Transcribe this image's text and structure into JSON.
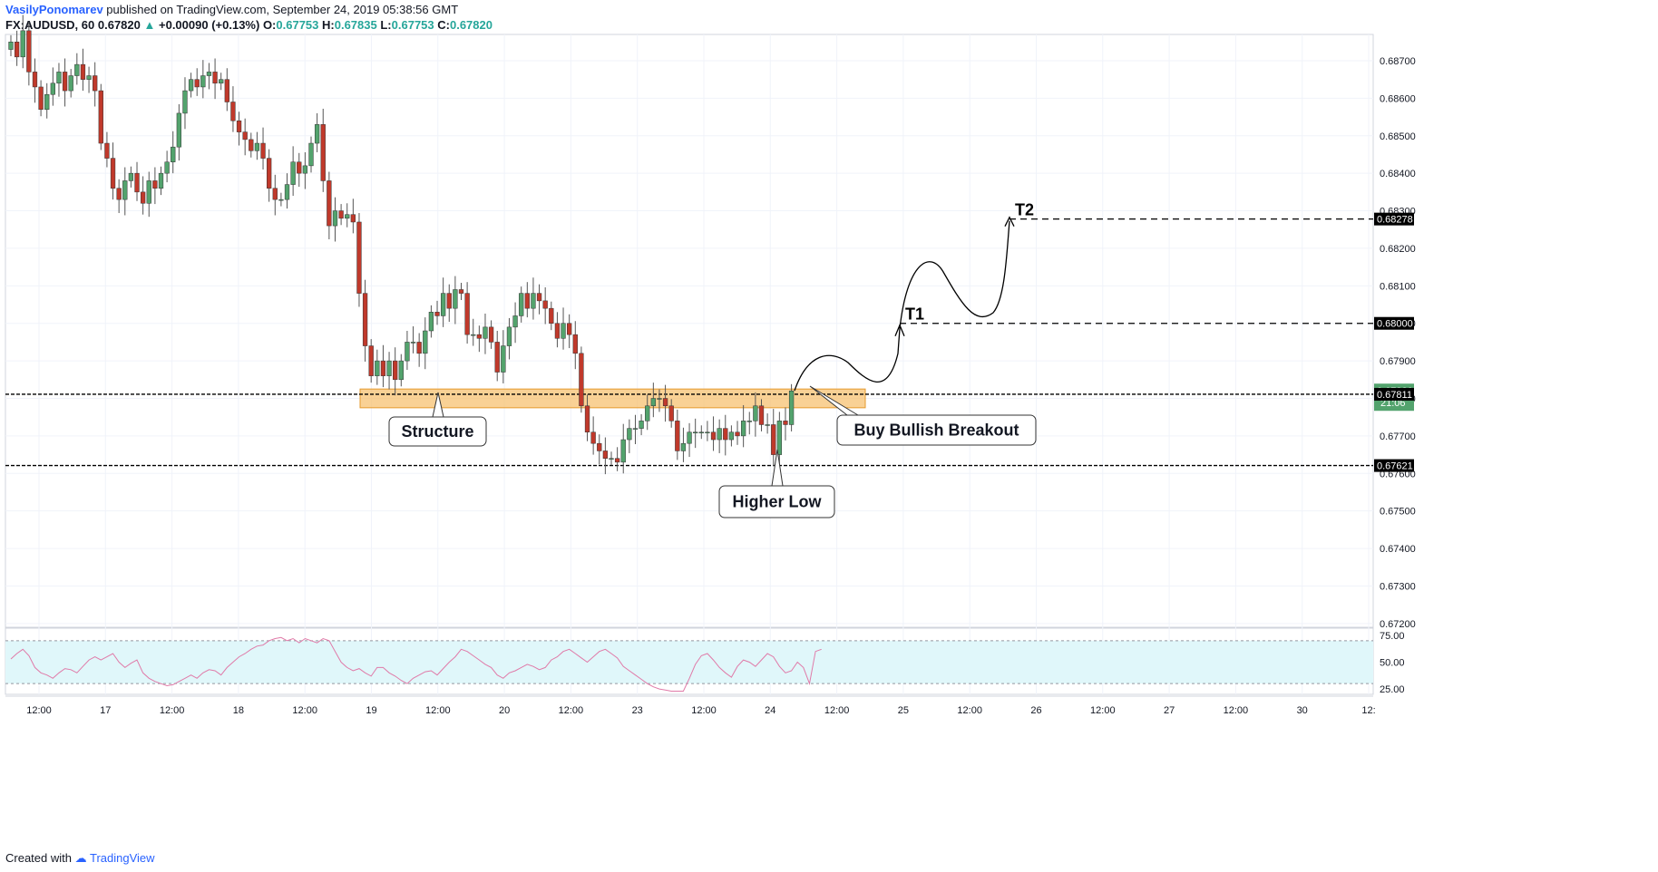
{
  "header": {
    "author": "VasilyPonomarev",
    "published_text": "published on TradingView.com, September 24, 2019 05:38:56 GMT",
    "symbol": "FX:AUDUSD, 60",
    "last": "0.67820",
    "arrow": "▲",
    "change": "+0.00090 (+0.13%)",
    "ohlc": {
      "o_label": "O:",
      "o": "0.67753",
      "h_label": "H:",
      "h": "0.67835",
      "l_label": "L:",
      "l": "0.67753",
      "c_label": "C:",
      "c": "0.67820"
    }
  },
  "footer": {
    "created_with": "Created with",
    "brand": "TradingView",
    "logo_icon": "tradingview-logo-icon"
  },
  "colors": {
    "bull": "#53a36d",
    "bear": "#c0392b",
    "zone_fill": "#f7c271",
    "zone_border": "#e59a2e",
    "rsi_band": "#e0f7fa",
    "rsi_line": "#e07aa8",
    "axis_text": "#131722",
    "grid": "#f0f3fa"
  },
  "chart_data": [
    {
      "type": "candlestick",
      "title": "FX:AUDUSD, 60",
      "ylim": [
        0.6719,
        0.6877
      ],
      "y_ticks": [
        "0.67200",
        "0.67300",
        "0.67400",
        "0.67500",
        "0.67600",
        "0.67700",
        "0.67800",
        "0.67900",
        "0.68000",
        "0.68100",
        "0.68200",
        "0.68300",
        "0.68400",
        "0.68500",
        "0.68600",
        "0.68700"
      ],
      "x_ticks": [
        "12:00",
        "17",
        "12:00",
        "18",
        "12:00",
        "19",
        "12:00",
        "20",
        "12:00",
        "23",
        "12:00",
        "24",
        "12:00",
        "25",
        "12:00",
        "26",
        "12:00",
        "27",
        "12:00",
        "30",
        "12:"
      ],
      "price_labels": [
        "0.68278",
        "0.68000",
        "0.67820",
        "21:06",
        "0.67811",
        "0.67621"
      ],
      "horizontal_levels": [
        0.67811,
        0.67621
      ],
      "zone": [
        0.67775,
        0.67825
      ],
      "targets": [
        {
          "label": "T1",
          "price": 0.68
        },
        {
          "label": "T2",
          "price": 0.68278
        }
      ],
      "annotations": [
        "Structure",
        "Buy Bullish Breakout",
        "Higher Low"
      ],
      "closes": [
        0.6875,
        0.6871,
        0.6878,
        0.6867,
        0.6863,
        0.6857,
        0.6861,
        0.6864,
        0.6867,
        0.6862,
        0.6866,
        0.6869,
        0.6865,
        0.6866,
        0.6862,
        0.6848,
        0.6844,
        0.6836,
        0.6833,
        0.6838,
        0.684,
        0.6835,
        0.6832,
        0.6838,
        0.6836,
        0.684,
        0.6843,
        0.6847,
        0.6856,
        0.6862,
        0.6865,
        0.6863,
        0.6866,
        0.6867,
        0.6864,
        0.6865,
        0.6859,
        0.6854,
        0.6851,
        0.6849,
        0.6846,
        0.6848,
        0.6844,
        0.6836,
        0.6833,
        0.6833,
        0.6837,
        0.6843,
        0.684,
        0.6842,
        0.6848,
        0.6853,
        0.6838,
        0.6826,
        0.683,
        0.6828,
        0.6829,
        0.6827,
        0.6808,
        0.6794,
        0.6786,
        0.679,
        0.6786,
        0.679,
        0.6785,
        0.679,
        0.6795,
        0.6795,
        0.6792,
        0.6798,
        0.6803,
        0.6802,
        0.6808,
        0.6804,
        0.6809,
        0.6808,
        0.6797,
        0.6797,
        0.6796,
        0.6799,
        0.6795,
        0.6787,
        0.6794,
        0.6799,
        0.6802,
        0.6808,
        0.6804,
        0.6808,
        0.6806,
        0.6804,
        0.68,
        0.6796,
        0.68,
        0.6797,
        0.6792,
        0.6778,
        0.6771,
        0.6768,
        0.6766,
        0.6764,
        0.6764,
        0.6763,
        0.6769,
        0.6772,
        0.6772,
        0.6774,
        0.6778,
        0.678,
        0.678,
        0.6778,
        0.6774,
        0.6766,
        0.6768,
        0.6771,
        0.6771,
        0.6771,
        0.6771,
        0.6769,
        0.6772,
        0.6769,
        0.6771,
        0.677,
        0.6774,
        0.6774,
        0.6778,
        0.6773,
        0.6773,
        0.6765,
        0.6774,
        0.6773,
        0.6782
      ]
    },
    {
      "type": "line",
      "title": "",
      "ylim": [
        20,
        80
      ],
      "y_ticks": [
        "75.00",
        "50.00",
        "25.00"
      ],
      "band": [
        30,
        70
      ],
      "values": [
        53,
        58,
        62,
        56,
        45,
        40,
        38,
        35,
        40,
        44,
        43,
        40,
        46,
        52,
        55,
        52,
        55,
        58,
        50,
        45,
        49,
        52,
        40,
        35,
        32,
        30,
        28,
        29,
        32,
        35,
        38,
        35,
        40,
        43,
        42,
        38,
        45,
        50,
        55,
        58,
        62,
        65,
        66,
        70,
        72,
        73,
        70,
        72,
        68,
        72,
        70,
        68,
        72,
        70,
        60,
        50,
        45,
        42,
        44,
        40,
        37,
        45,
        45,
        40,
        37,
        33,
        30,
        35,
        38,
        41,
        42,
        38,
        44,
        50,
        55,
        62,
        60,
        56,
        52,
        48,
        45,
        38,
        35,
        40,
        42,
        45,
        48,
        46,
        43,
        45,
        52,
        55,
        60,
        62,
        58,
        54,
        50,
        55,
        60,
        62,
        58,
        54,
        46,
        42,
        38,
        34,
        30,
        27,
        25,
        24,
        23,
        23,
        23,
        35,
        48,
        56,
        58,
        52,
        45,
        40,
        36,
        46,
        52,
        50,
        46,
        52,
        58,
        55,
        46,
        40,
        42,
        50,
        45,
        30,
        60,
        62
      ]
    }
  ]
}
